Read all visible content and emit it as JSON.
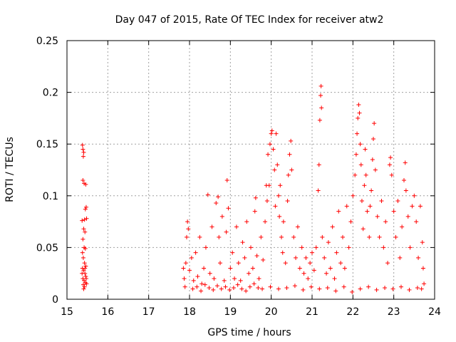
{
  "chart_data": {
    "type": "scatter",
    "title": "Day 047 of 2015, Rate Of TEC Index for receiver atw2",
    "xlabel": "GPS time / hours",
    "ylabel": "ROTI / TECUs",
    "xlim": [
      15,
      24
    ],
    "ylim": [
      0,
      0.25
    ],
    "xticks": [
      15,
      16,
      17,
      18,
      19,
      20,
      21,
      22,
      23,
      24
    ],
    "yticks": [
      0,
      0.05,
      0.1,
      0.15,
      0.2,
      0.25
    ],
    "xtick_labels": [
      "15",
      "16",
      "17",
      "18",
      "19",
      "20",
      "21",
      "22",
      "23",
      "24"
    ],
    "ytick_labels": [
      "0",
      "0.05",
      "0.1",
      "0.15",
      "0.2",
      "0.25"
    ],
    "grid": true,
    "marker": "plus",
    "color": "#ff0000",
    "series": [
      {
        "name": "ROTI",
        "points": [
          [
            15.38,
            0.149
          ],
          [
            15.39,
            0.145
          ],
          [
            15.4,
            0.138
          ],
          [
            15.41,
            0.142
          ],
          [
            15.39,
            0.115
          ],
          [
            15.42,
            0.112
          ],
          [
            15.46,
            0.111
          ],
          [
            15.47,
            0.089
          ],
          [
            15.45,
            0.087
          ],
          [
            15.43,
            0.077
          ],
          [
            15.37,
            0.076
          ],
          [
            15.48,
            0.078
          ],
          [
            15.41,
            0.068
          ],
          [
            15.44,
            0.065
          ],
          [
            15.39,
            0.058
          ],
          [
            15.42,
            0.05
          ],
          [
            15.45,
            0.049
          ],
          [
            15.38,
            0.045
          ],
          [
            15.4,
            0.04
          ],
          [
            15.43,
            0.035
          ],
          [
            15.38,
            0.03
          ],
          [
            15.41,
            0.028
          ],
          [
            15.44,
            0.025
          ],
          [
            15.46,
            0.022
          ],
          [
            15.39,
            0.02
          ],
          [
            15.42,
            0.018
          ],
          [
            15.45,
            0.016
          ],
          [
            15.4,
            0.014
          ],
          [
            15.43,
            0.012
          ],
          [
            15.47,
            0.02
          ],
          [
            15.37,
            0.025
          ],
          [
            15.48,
            0.015
          ],
          [
            15.41,
            0.01
          ],
          [
            15.44,
            0.03
          ],
          [
            15.46,
            0.032
          ],
          [
            17.85,
            0.03
          ],
          [
            17.87,
            0.02
          ],
          [
            17.89,
            0.012
          ],
          [
            17.91,
            0.035
          ],
          [
            17.93,
            0.06
          ],
          [
            17.95,
            0.075
          ],
          [
            17.97,
            0.068
          ],
          [
            18.0,
            0.028
          ],
          [
            18.05,
            0.04
          ],
          [
            18.1,
            0.018
          ],
          [
            18.15,
            0.045
          ],
          [
            18.2,
            0.022
          ],
          [
            18.25,
            0.06
          ],
          [
            18.3,
            0.015
          ],
          [
            18.35,
            0.03
          ],
          [
            18.4,
            0.05
          ],
          [
            18.45,
            0.101
          ],
          [
            18.5,
            0.025
          ],
          [
            18.55,
            0.07
          ],
          [
            18.6,
            0.02
          ],
          [
            18.65,
            0.093
          ],
          [
            18.7,
            0.099
          ],
          [
            18.72,
            0.06
          ],
          [
            18.75,
            0.035
          ],
          [
            18.8,
            0.08
          ],
          [
            18.85,
            0.018
          ],
          [
            18.9,
            0.065
          ],
          [
            18.92,
            0.115
          ],
          [
            18.95,
            0.088
          ],
          [
            19.0,
            0.03
          ],
          [
            19.05,
            0.045
          ],
          [
            19.1,
            0.02
          ],
          [
            19.15,
            0.07
          ],
          [
            19.2,
            0.035
          ],
          [
            19.25,
            0.018
          ],
          [
            19.3,
            0.055
          ],
          [
            19.35,
            0.04
          ],
          [
            19.4,
            0.075
          ],
          [
            19.45,
            0.025
          ],
          [
            19.5,
            0.05
          ],
          [
            19.55,
            0.03
          ],
          [
            19.6,
            0.085
          ],
          [
            19.62,
            0.098
          ],
          [
            19.65,
            0.042
          ],
          [
            19.7,
            0.02
          ],
          [
            19.75,
            0.06
          ],
          [
            19.8,
            0.038
          ],
          [
            19.85,
            0.075
          ],
          [
            19.88,
            0.11
          ],
          [
            19.9,
            0.095
          ],
          [
            19.92,
            0.14
          ],
          [
            19.95,
            0.11
          ],
          [
            19.97,
            0.15
          ],
          [
            20.0,
            0.16
          ],
          [
            20.02,
            0.163
          ],
          [
            20.05,
            0.145
          ],
          [
            20.08,
            0.125
          ],
          [
            20.1,
            0.09
          ],
          [
            20.12,
            0.16
          ],
          [
            20.15,
            0.13
          ],
          [
            20.18,
            0.1
          ],
          [
            20.2,
            0.08
          ],
          [
            20.22,
            0.11
          ],
          [
            20.25,
            0.06
          ],
          [
            20.28,
            0.045
          ],
          [
            20.3,
            0.075
          ],
          [
            20.35,
            0.035
          ],
          [
            20.4,
            0.095
          ],
          [
            20.42,
            0.12
          ],
          [
            20.45,
            0.14
          ],
          [
            20.48,
            0.153
          ],
          [
            20.5,
            0.125
          ],
          [
            20.55,
            0.06
          ],
          [
            20.6,
            0.04
          ],
          [
            20.65,
            0.07
          ],
          [
            20.7,
            0.03
          ],
          [
            20.75,
            0.05
          ],
          [
            20.8,
            0.025
          ],
          [
            20.85,
            0.04
          ],
          [
            20.9,
            0.02
          ],
          [
            20.95,
            0.035
          ],
          [
            21.0,
            0.045
          ],
          [
            21.05,
            0.028
          ],
          [
            21.1,
            0.05
          ],
          [
            21.15,
            0.105
          ],
          [
            21.17,
            0.13
          ],
          [
            21.19,
            0.173
          ],
          [
            21.21,
            0.197
          ],
          [
            21.22,
            0.206
          ],
          [
            21.23,
            0.185
          ],
          [
            21.25,
            0.06
          ],
          [
            21.3,
            0.04
          ],
          [
            21.35,
            0.025
          ],
          [
            21.4,
            0.055
          ],
          [
            21.45,
            0.03
          ],
          [
            21.5,
            0.07
          ],
          [
            21.55,
            0.02
          ],
          [
            21.6,
            0.045
          ],
          [
            21.65,
            0.085
          ],
          [
            21.7,
            0.035
          ],
          [
            21.75,
            0.06
          ],
          [
            21.8,
            0.03
          ],
          [
            21.85,
            0.09
          ],
          [
            21.9,
            0.05
          ],
          [
            21.95,
            0.075
          ],
          [
            22.0,
            0.1
          ],
          [
            22.05,
            0.12
          ],
          [
            22.08,
            0.14
          ],
          [
            22.1,
            0.16
          ],
          [
            22.12,
            0.175
          ],
          [
            22.14,
            0.188
          ],
          [
            22.16,
            0.18
          ],
          [
            22.18,
            0.15
          ],
          [
            22.2,
            0.13
          ],
          [
            22.22,
            0.095
          ],
          [
            22.25,
            0.068
          ],
          [
            22.28,
            0.11
          ],
          [
            22.3,
            0.145
          ],
          [
            22.32,
            0.12
          ],
          [
            22.35,
            0.085
          ],
          [
            22.4,
            0.06
          ],
          [
            22.42,
            0.09
          ],
          [
            22.45,
            0.105
          ],
          [
            22.48,
            0.135
          ],
          [
            22.5,
            0.155
          ],
          [
            22.52,
            0.17
          ],
          [
            22.55,
            0.125
          ],
          [
            22.6,
            0.08
          ],
          [
            22.65,
            0.06
          ],
          [
            22.7,
            0.095
          ],
          [
            22.75,
            0.05
          ],
          [
            22.8,
            0.075
          ],
          [
            22.85,
            0.035
          ],
          [
            22.9,
            0.13
          ],
          [
            22.92,
            0.137
          ],
          [
            22.95,
            0.12
          ],
          [
            23.0,
            0.085
          ],
          [
            23.05,
            0.06
          ],
          [
            23.1,
            0.095
          ],
          [
            23.15,
            0.04
          ],
          [
            23.2,
            0.07
          ],
          [
            23.25,
            0.115
          ],
          [
            23.28,
            0.132
          ],
          [
            23.3,
            0.105
          ],
          [
            23.35,
            0.08
          ],
          [
            23.4,
            0.05
          ],
          [
            23.45,
            0.09
          ],
          [
            23.5,
            0.1
          ],
          [
            23.55,
            0.075
          ],
          [
            23.6,
            0.04
          ],
          [
            23.65,
            0.09
          ],
          [
            23.7,
            0.055
          ],
          [
            23.72,
            0.03
          ],
          [
            23.74,
            0.015
          ],
          [
            18.08,
            0.01
          ],
          [
            18.18,
            0.012
          ],
          [
            18.28,
            0.008
          ],
          [
            18.38,
            0.014
          ],
          [
            18.48,
            0.011
          ],
          [
            18.58,
            0.009
          ],
          [
            18.68,
            0.013
          ],
          [
            18.78,
            0.01
          ],
          [
            18.88,
            0.012
          ],
          [
            18.98,
            0.009
          ],
          [
            19.08,
            0.011
          ],
          [
            19.18,
            0.014
          ],
          [
            19.28,
            0.01
          ],
          [
            19.38,
            0.008
          ],
          [
            19.48,
            0.012
          ],
          [
            19.58,
            0.015
          ],
          [
            19.68,
            0.011
          ],
          [
            19.78,
            0.01
          ],
          [
            19.98,
            0.012
          ],
          [
            20.18,
            0.01
          ],
          [
            20.38,
            0.011
          ],
          [
            20.58,
            0.013
          ],
          [
            20.78,
            0.009
          ],
          [
            20.98,
            0.012
          ],
          [
            21.18,
            0.01
          ],
          [
            21.38,
            0.011
          ],
          [
            21.58,
            0.008
          ],
          [
            21.78,
            0.012
          ],
          [
            21.98,
            0.007
          ],
          [
            22.18,
            0.01
          ],
          [
            22.38,
            0.012
          ],
          [
            22.58,
            0.009
          ],
          [
            22.78,
            0.011
          ],
          [
            22.98,
            0.01
          ],
          [
            23.18,
            0.012
          ],
          [
            23.38,
            0.009
          ],
          [
            23.58,
            0.011
          ],
          [
            23.68,
            0.01
          ]
        ]
      }
    ]
  }
}
